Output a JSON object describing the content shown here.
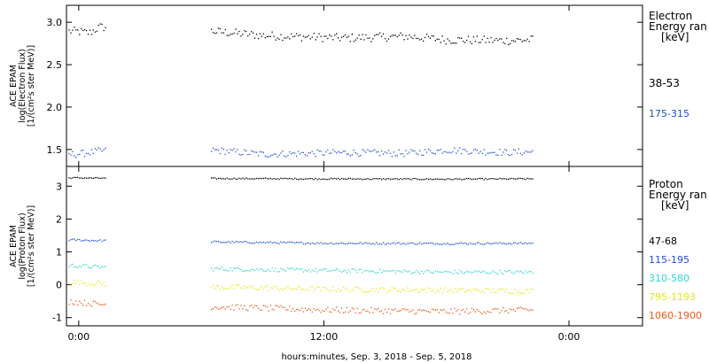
{
  "chart_data": [
    {
      "type": "scatter",
      "panel": "top",
      "ylabel_lines": [
        "ACE EPAM",
        "log(Electron Flux)",
        "[1/(cm²s ster MeV)]"
      ],
      "ylim": [
        1.3,
        3.2
      ],
      "yticks": [
        1.5,
        2.0,
        2.5,
        3.0
      ],
      "ytick_labels": [
        "1.5",
        "2.0",
        "2.5",
        "3.0"
      ],
      "legend_title_lines": [
        "Electron",
        "Energy ran",
        "[keV]"
      ],
      "series": [
        {
          "name": "38-53",
          "color": "#000000",
          "mean": 2.86,
          "spread": 0.05,
          "points": [
            [
              -0.2,
              2.9
            ],
            [
              0.5,
              2.88
            ],
            [
              1.0,
              2.95
            ],
            [
              6.5,
              2.9
            ],
            [
              9.0,
              2.85
            ],
            [
              13.0,
              2.82
            ],
            [
              16.0,
              2.84
            ],
            [
              18.0,
              2.8
            ],
            [
              21.0,
              2.79
            ],
            [
              22.1,
              2.8
            ]
          ]
        },
        {
          "name": "175-315",
          "color": "#1f4fd6",
          "mean": 1.47,
          "spread": 0.04,
          "points": [
            [
              -0.2,
              1.45
            ],
            [
              0.5,
              1.47
            ],
            [
              1.0,
              1.49
            ],
            [
              6.5,
              1.5
            ],
            [
              9.0,
              1.45
            ],
            [
              13.0,
              1.47
            ],
            [
              16.0,
              1.46
            ],
            [
              18.0,
              1.5
            ],
            [
              21.0,
              1.47
            ],
            [
              22.1,
              1.48
            ]
          ]
        }
      ]
    },
    {
      "type": "scatter",
      "panel": "bottom",
      "ylabel_lines": [
        "ACE EPAM",
        "log(Proton Flux)",
        "[1/(cm²s ster MeV)]"
      ],
      "ylim": [
        -1.25,
        3.6
      ],
      "yticks": [
        -1,
        0,
        1,
        2,
        3
      ],
      "ytick_labels": [
        "-1",
        "0",
        "1",
        "2",
        "3"
      ],
      "legend_title_lines": [
        "Proton",
        "Energy ran",
        "[keV]"
      ],
      "series": [
        {
          "name": "47-68",
          "color": "#000000",
          "mean": 3.25,
          "spread": 0.02,
          "points": [
            [
              -0.2,
              3.27
            ],
            [
              1.0,
              3.26
            ],
            [
              6.5,
              3.25
            ],
            [
              12.0,
              3.24
            ],
            [
              18.0,
              3.23
            ],
            [
              22.1,
              3.24
            ]
          ]
        },
        {
          "name": "115-195",
          "color": "#1f4fd6",
          "mean": 1.3,
          "spread": 0.03,
          "points": [
            [
              -0.2,
              1.38
            ],
            [
              1.0,
              1.36
            ],
            [
              6.5,
              1.32
            ],
            [
              12.0,
              1.28
            ],
            [
              18.0,
              1.27
            ],
            [
              22.1,
              1.28
            ]
          ]
        },
        {
          "name": "310-580",
          "color": "#2ed4d0",
          "mean": 0.45,
          "spread": 0.06,
          "points": [
            [
              -0.2,
              0.6
            ],
            [
              1.0,
              0.55
            ],
            [
              6.5,
              0.5
            ],
            [
              12.0,
              0.45
            ],
            [
              18.0,
              0.4
            ],
            [
              22.1,
              0.4
            ]
          ]
        },
        {
          "name": "795-1193",
          "color": "#e6e61a",
          "mean": -0.1,
          "spread": 0.08,
          "points": [
            [
              -0.2,
              0.1
            ],
            [
              1.0,
              0.05
            ],
            [
              6.5,
              -0.05
            ],
            [
              12.0,
              -0.12
            ],
            [
              18.0,
              -0.15
            ],
            [
              22.1,
              -0.18
            ]
          ]
        },
        {
          "name": "1060-1900",
          "color": "#e85a17",
          "mean": -0.7,
          "spread": 0.09,
          "points": [
            [
              -0.2,
              -0.5
            ],
            [
              1.0,
              -0.58
            ],
            [
              6.5,
              -0.65
            ],
            [
              12.0,
              -0.75
            ],
            [
              18.0,
              -0.8
            ],
            [
              22.1,
              -0.75
            ]
          ]
        }
      ]
    }
  ],
  "x_axis": {
    "xlabel": "hours:minutes, Sep.  3, 2018 - Sep.  5, 2018",
    "ticks": [
      0,
      12,
      24
    ],
    "tick_labels": [
      "0:00",
      "12:00",
      "0:00"
    ],
    "xlim": [
      -0.6,
      27.6
    ],
    "data_gaps": [
      [
        1.3,
        6.4
      ],
      [
        22.2,
        27.6
      ]
    ],
    "data_start": -0.5
  }
}
